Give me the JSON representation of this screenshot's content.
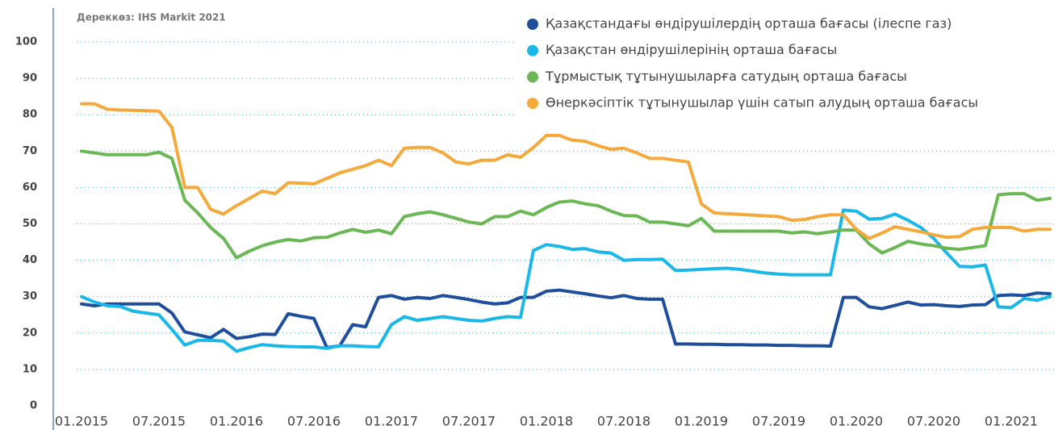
{
  "chart_data": {
    "type": "line",
    "annotation": "Дереккөз: IHS Markit 2021",
    "categories": [
      "01.2015",
      null,
      null,
      null,
      null,
      null,
      "07.2015",
      null,
      null,
      null,
      null,
      null,
      "01.2016",
      null,
      null,
      null,
      null,
      null,
      "07.2016",
      null,
      null,
      null,
      null,
      null,
      "01.2017",
      null,
      null,
      null,
      null,
      null,
      "07.2017",
      null,
      null,
      null,
      null,
      null,
      "01.2018",
      null,
      null,
      null,
      null,
      null,
      "07.2018",
      null,
      null,
      null,
      null,
      null,
      "01.2019",
      null,
      null,
      null,
      null,
      null,
      "07.2019",
      null,
      null,
      null,
      null,
      null,
      "01.2020",
      null,
      null,
      null,
      null,
      null,
      "07.2020",
      null,
      null,
      null,
      null,
      null,
      "01.2021",
      null,
      null,
      null
    ],
    "ylim": [
      0,
      100
    ],
    "yticks": [
      0,
      10,
      20,
      30,
      40,
      50,
      60,
      70,
      80,
      90,
      100
    ],
    "grid": true,
    "legend": "top-right",
    "series": [
      {
        "name": "Қазақстандағы өндірушілердің орташа бағасы (ілеспе газ)",
        "color": "#1f4e9c",
        "values": [
          28,
          27.5,
          28,
          28,
          28,
          28,
          28,
          25.5,
          20.3,
          19.5,
          18.7,
          21,
          18.5,
          19,
          19.7,
          19.6,
          25.3,
          24.6,
          24,
          16,
          16.5,
          22.3,
          21.7,
          29.8,
          30.3,
          29.3,
          29.8,
          29.5,
          30.3,
          29.8,
          29.2,
          28.5,
          28,
          28.3,
          29.8,
          29.8,
          31.5,
          31.8,
          31.3,
          30.8,
          30.2,
          29.7,
          30.3,
          29.5,
          29.3,
          29.3,
          17,
          17,
          16.9,
          16.9,
          16.8,
          16.8,
          16.7,
          16.7,
          16.6,
          16.6,
          16.5,
          16.5,
          16.4,
          29.8,
          29.8,
          27.2,
          26.7,
          27.6,
          28.5,
          27.7,
          27.8,
          27.5,
          27.3,
          27.7,
          27.8,
          30.3,
          30.5,
          30.3,
          31,
          30.8
        ]
      },
      {
        "name": "Қазақстан өндірушілерінің орташа бағасы",
        "color": "#1ab8e8",
        "values": [
          30,
          28.5,
          27.5,
          27.3,
          26,
          25.5,
          25,
          21,
          16.7,
          18,
          18,
          17.8,
          15,
          16,
          16.8,
          16.5,
          16.3,
          16.2,
          16.2,
          15.8,
          16.5,
          16.5,
          16.3,
          16.2,
          22.3,
          24.5,
          23.5,
          24,
          24.5,
          24,
          23.5,
          23.3,
          24,
          24.5,
          24.3,
          42.7,
          44.3,
          43.8,
          43,
          43.2,
          42.3,
          42,
          40,
          40.2,
          40.2,
          40.3,
          37.2,
          37.3,
          37.5,
          37.7,
          37.8,
          37.5,
          37,
          36.5,
          36.2,
          36,
          36,
          36,
          36,
          53.8,
          53.5,
          51.3,
          51.5,
          52.7,
          51,
          49,
          46,
          42,
          38.3,
          38.2,
          38.7,
          27.2,
          27,
          29.5,
          29,
          30
        ]
      },
      {
        "name": "Тұрмыстық тұтынушыларға сатудың орташа бағасы",
        "color": "#6ab853",
        "values": [
          70,
          69.5,
          69,
          69,
          69,
          69,
          69.7,
          68,
          56.5,
          53,
          49,
          46,
          40.7,
          42.5,
          44,
          45,
          45.7,
          45.3,
          46.2,
          46.3,
          47.5,
          48.5,
          47.7,
          48.3,
          47.3,
          52,
          52.8,
          53.3,
          52.5,
          51.5,
          50.5,
          50,
          52,
          52,
          53.5,
          52.5,
          54.5,
          56,
          56.3,
          55.5,
          55,
          53.5,
          52.3,
          52.2,
          50.5,
          50.5,
          50,
          49.5,
          51.5,
          48,
          48,
          48,
          48,
          48,
          48,
          47.5,
          47.8,
          47.3,
          47.8,
          48.3,
          48.3,
          44.5,
          42,
          43.5,
          45.2,
          44.5,
          44,
          43.3,
          43,
          43.5,
          44,
          58,
          58.3,
          58.3,
          56.5,
          57
        ]
      },
      {
        "name": "Өнеркәсіптік тұтынушылар үшін сатып алудың орташа бағасы",
        "color": "#f5a93a",
        "values": [
          83,
          83,
          81.5,
          81.3,
          81.2,
          81.1,
          81,
          76.5,
          60,
          60,
          54,
          52.7,
          55,
          57,
          59,
          58.3,
          61.3,
          61.2,
          61,
          62.5,
          64,
          65,
          66,
          67.5,
          66,
          70.8,
          71,
          71,
          69.5,
          67,
          66.5,
          67.5,
          67.5,
          69,
          68.3,
          71,
          74.3,
          74.3,
          73,
          72.7,
          71.5,
          70.5,
          70.8,
          69.5,
          68,
          68,
          67.5,
          67,
          55.5,
          53,
          52.8,
          52.6,
          52.4,
          52.2,
          52,
          51,
          51.2,
          52,
          52.5,
          52.5,
          48.5,
          46,
          47.5,
          49.2,
          48.5,
          47.8,
          47,
          46.3,
          46.5,
          48.5,
          49,
          49,
          49,
          48,
          48.5,
          48.5
        ]
      }
    ]
  }
}
